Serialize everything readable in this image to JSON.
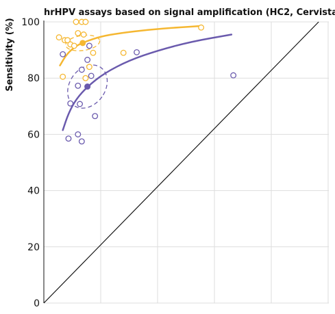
{
  "chart_data": {
    "type": "scatter",
    "title": "hrHPV assays based on signal amplification (HC2, Cervista)",
    "ylabel": "Sensitivity (%)",
    "xlabel": "",
    "ylim": [
      0,
      100
    ],
    "xlim": [
      0,
      100
    ],
    "y_ticks": [
      "0",
      "20",
      "40",
      "60",
      "80",
      "100"
    ],
    "grid": true,
    "colors": {
      "orange": "#f5b731",
      "purple": "#6a5aad",
      "reference": "#111111",
      "grid": "#dddddd"
    },
    "series": [
      {
        "color": "orange",
        "points": [
          {
            "x": 17,
            "y": 100
          },
          {
            "x": 20,
            "y": 100
          },
          {
            "x": 22,
            "y": 100
          },
          {
            "x": 8,
            "y": 94.5
          },
          {
            "x": 18,
            "y": 96
          },
          {
            "x": 21,
            "y": 95.5
          },
          {
            "x": 11,
            "y": 93.5
          },
          {
            "x": 12.5,
            "y": 93.5
          },
          {
            "x": 14,
            "y": 92
          },
          {
            "x": 16,
            "y": 91.5
          },
          {
            "x": 26,
            "y": 89
          },
          {
            "x": 42,
            "y": 89
          },
          {
            "x": 10,
            "y": 80.5
          },
          {
            "x": 24,
            "y": 84
          },
          {
            "x": 22,
            "y": 80
          },
          {
            "x": 83,
            "y": 98
          }
        ],
        "summary": {
          "x": 20.5,
          "y": 92.5
        },
        "curve": [
          {
            "x": 8.5,
            "y": 84.5
          },
          {
            "x": 12,
            "y": 88.5
          },
          {
            "x": 17,
            "y": 91.5
          },
          {
            "x": 22,
            "y": 93
          },
          {
            "x": 30,
            "y": 94.8
          },
          {
            "x": 40,
            "y": 96
          },
          {
            "x": 55,
            "y": 97.2
          },
          {
            "x": 70,
            "y": 98
          },
          {
            "x": 82,
            "y": 98.5
          }
        ]
      },
      {
        "color": "purple",
        "points": [
          {
            "x": 10,
            "y": 88.5
          },
          {
            "x": 24,
            "y": 91.5
          },
          {
            "x": 49,
            "y": 89.2
          },
          {
            "x": 23,
            "y": 86.5
          },
          {
            "x": 20,
            "y": 83
          },
          {
            "x": 25,
            "y": 80.8
          },
          {
            "x": 18,
            "y": 77.3
          },
          {
            "x": 14,
            "y": 71
          },
          {
            "x": 19,
            "y": 70.8
          },
          {
            "x": 27,
            "y": 66.5
          },
          {
            "x": 18,
            "y": 60
          },
          {
            "x": 13,
            "y": 58.5
          },
          {
            "x": 20,
            "y": 57.5
          },
          {
            "x": 100,
            "y": 81
          }
        ],
        "summary": {
          "x": 23,
          "y": 77
        },
        "curve": [
          {
            "x": 10,
            "y": 61.5
          },
          {
            "x": 13,
            "y": 67.5
          },
          {
            "x": 17,
            "y": 72.5
          },
          {
            "x": 23,
            "y": 77
          },
          {
            "x": 32,
            "y": 81.8
          },
          {
            "x": 45,
            "y": 86.3
          },
          {
            "x": 60,
            "y": 89.8
          },
          {
            "x": 78,
            "y": 93
          },
          {
            "x": 99,
            "y": 95.5
          }
        ]
      }
    ],
    "reference_line": {
      "from": [
        0,
        0
      ],
      "to": [
        145,
        100
      ]
    }
  }
}
